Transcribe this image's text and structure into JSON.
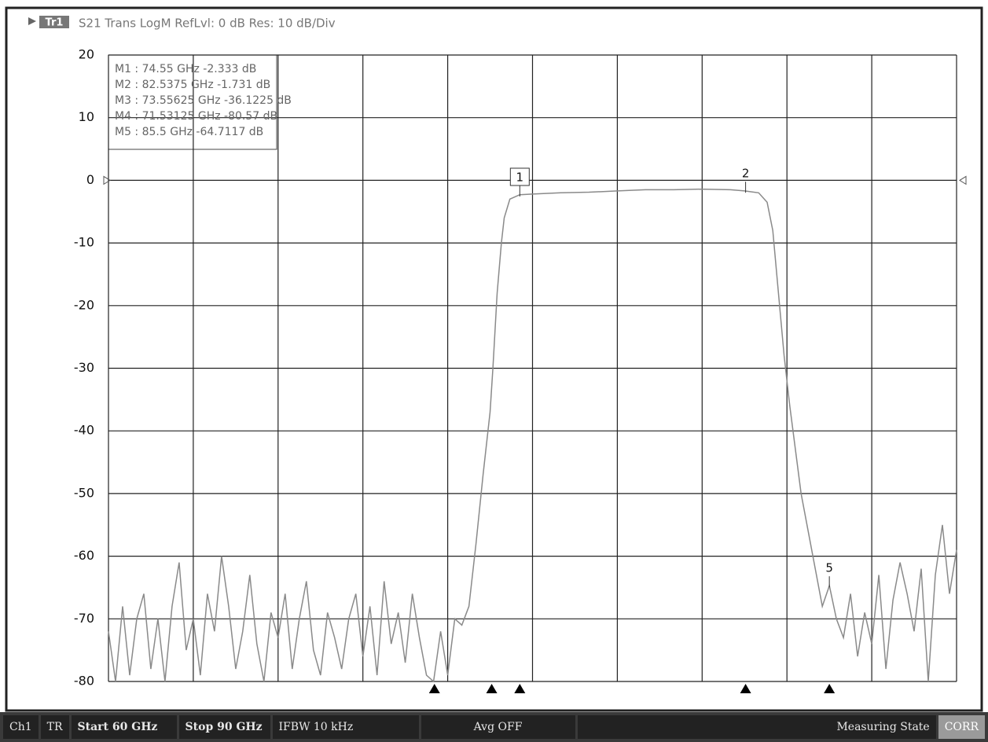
{
  "chart_data": {
    "type": "line",
    "header": {
      "badge": "Tr1",
      "title": "S21 Trans LogM RefLvl: 0  dB Res: 10  dB/Div"
    },
    "xlim": [
      60,
      90
    ],
    "xticks": [
      60,
      63,
      66,
      69,
      72,
      75,
      78,
      81,
      84,
      87,
      90
    ],
    "ylim": [
      -80,
      20
    ],
    "yticks": [
      20,
      10,
      0,
      -10,
      -20,
      -30,
      -40,
      -50,
      -60,
      -70,
      -80
    ],
    "grid": true,
    "color": "#8a8a8a",
    "x": [
      60,
      60.25,
      60.5,
      60.75,
      61,
      61.25,
      61.5,
      61.75,
      62,
      62.25,
      62.5,
      62.75,
      63,
      63.25,
      63.5,
      63.75,
      64,
      64.25,
      64.5,
      64.75,
      65,
      65.25,
      65.5,
      65.75,
      66,
      66.25,
      66.5,
      66.75,
      67,
      67.25,
      67.5,
      67.75,
      68,
      68.25,
      68.5,
      68.75,
      69,
      69.25,
      69.5,
      69.75,
      70,
      70.25,
      70.5,
      70.75,
      71,
      71.25,
      71.5,
      71.75,
      72,
      72.25,
      72.5,
      72.75,
      73,
      73.25,
      73.5,
      73.6,
      73.75,
      73.9,
      74,
      74.2,
      74.55,
      75,
      76,
      77,
      78,
      79,
      80,
      81,
      82,
      82.5,
      83,
      83.3,
      83.5,
      83.7,
      83.9,
      84.1,
      84.3,
      84.5,
      84.75,
      85,
      85.25,
      85.5,
      85.75,
      86,
      86.25,
      86.5,
      86.75,
      87,
      87.25,
      87.5,
      87.75,
      88,
      88.25,
      88.5,
      88.75,
      89,
      89.25,
      89.5,
      89.75,
      90
    ],
    "values": [
      -72,
      -80,
      -68,
      -79,
      -70,
      -66,
      -78,
      -70,
      -80,
      -68,
      -61,
      -75,
      -70,
      -79,
      -66,
      -72,
      -60,
      -68,
      -78,
      -72,
      -63,
      -74,
      -80,
      -69,
      -73,
      -66,
      -78,
      -70,
      -64,
      -75,
      -79,
      -69,
      -73,
      -78,
      -70,
      -66,
      -76,
      -68,
      -79,
      -64,
      -74,
      -69,
      -77,
      -66,
      -73,
      -79,
      -80,
      -72,
      -79,
      -70,
      -71,
      -68,
      -58,
      -47,
      -37,
      -30,
      -18,
      -10,
      -6,
      -3,
      -2.3,
      -2.2,
      -2.0,
      -1.9,
      -1.7,
      -1.5,
      -1.5,
      -1.4,
      -1.5,
      -1.7,
      -2.0,
      -3.5,
      -8,
      -18,
      -28,
      -36,
      -43,
      -50,
      -56,
      -62,
      -68,
      -64.7,
      -70,
      -73,
      -66,
      -76,
      -69,
      -74,
      -63,
      -78,
      -67,
      -61,
      -66,
      -72,
      -62,
      -80,
      -63,
      -55,
      -66,
      -59
    ],
    "markers": [
      {
        "readout": "M1 :  74.55 GHz  -2.333  dB",
        "x": 74.55,
        "y": -2.333,
        "flag": "1"
      },
      {
        "readout": "M2 :  82.5375 GHz  -1.731  dB",
        "x": 82.5375,
        "y": -1.731,
        "flag": "2"
      },
      {
        "readout": "M3 :  73.55625 GHz  -36.1225  dB",
        "x": 73.55625,
        "y": -36.1225
      },
      {
        "readout": "M4 :  71.53125 GHz  -80.57  dB",
        "x": 71.53125,
        "y": -80.57
      },
      {
        "readout": "M5 :  85.5 GHz  -64.7117  dB",
        "x": 85.5,
        "y": -64.7117,
        "flag": "5"
      }
    ],
    "status": {
      "channel": "Ch1",
      "trace": "TR",
      "start": "Start 60 GHz",
      "stop": "Stop 90 GHz",
      "ifbw": "IFBW 10 kHz",
      "avg": "Avg OFF",
      "state": "Measuring State",
      "corr": "CORR"
    }
  }
}
